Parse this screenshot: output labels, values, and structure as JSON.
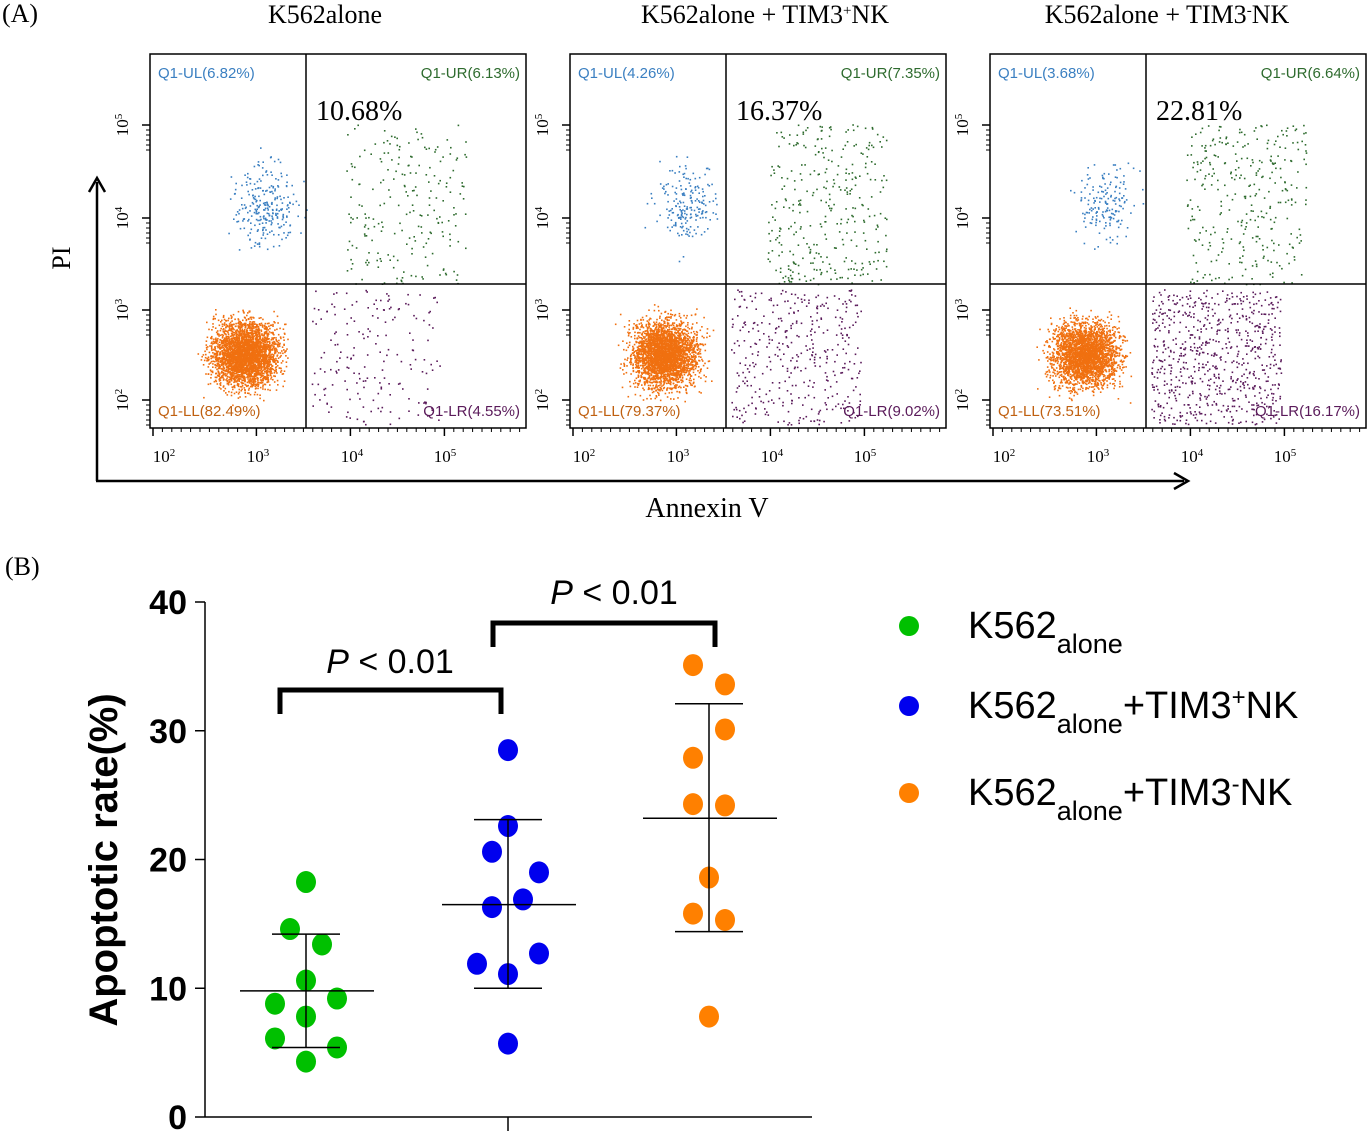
{
  "panel_a": {
    "label": "(A)",
    "y_axis_label": "PI",
    "x_axis_label": "Annexin V",
    "tick_base": "10",
    "tick_exponents": [
      "2",
      "3",
      "4",
      "5"
    ],
    "panels": [
      {
        "title_main": "K562alone",
        "title_sup": "",
        "title_end": "",
        "ul": "Q1-UL(6.82%)",
        "ur": "Q1-UR(6.13%)",
        "ll": "Q1-LL(82.49%)",
        "lr": "Q1-LR(4.55%)",
        "total": "10.68%"
      },
      {
        "title_main": "K562alone  + TIM3",
        "title_sup": "+",
        "title_end": "NK",
        "ul": "Q1-UL(4.26%)",
        "ur": "Q1-UR(7.35%)",
        "ll": "Q1-LL(79.37%)",
        "lr": "Q1-LR(9.02%)",
        "total": "16.37%"
      },
      {
        "title_main": "K562alone  + TIM3",
        "title_sup": "-",
        "title_end": "NK",
        "ul": "Q1-UL(3.68%)",
        "ur": "Q1-UR(6.64%)",
        "ll": "Q1-LL(73.51%)",
        "lr": "Q1-LR(16.17%)",
        "total": "22.81%"
      }
    ],
    "quadrant_colors": {
      "ul": "#3a7fc1",
      "ur": "#2e6b2e",
      "ll": "#f07010",
      "lr": "#5a1a5a"
    }
  },
  "chart_data": {
    "type": "scatter",
    "panel_label": "(B)",
    "ylabel": "Apoptotic rate(%)",
    "ylim": [
      0,
      40
    ],
    "yticks": [
      "0",
      "10",
      "20",
      "30",
      "40"
    ],
    "legend_position": "right",
    "series": [
      {
        "name_main": "K562",
        "name_sub": "alone",
        "name_suffix": "",
        "name_sup": "",
        "name_end": "",
        "color": "#00c000",
        "values": [
          18.25,
          14.6,
          13.4,
          10.6,
          9.2,
          8.8,
          7.8,
          6.1,
          5.4,
          4.3
        ],
        "mean": 9.8,
        "sd_upper": 14.2,
        "sd_lower": 5.4
      },
      {
        "name_main": "K562",
        "name_sub": "alone",
        "name_suffix": "+TIM3",
        "name_sup": "+",
        "name_end": "NK",
        "color": "#0000ee",
        "values": [
          28.5,
          22.6,
          20.6,
          19.0,
          16.9,
          16.3,
          12.7,
          11.9,
          11.1,
          5.7
        ],
        "mean": 16.5,
        "sd_upper": 23.1,
        "sd_lower": 10.0
      },
      {
        "name_main": "K562",
        "name_sub": "alone",
        "name_suffix": "+TIM3",
        "name_sup": "-",
        "name_end": "NK",
        "color": "#ff8000",
        "values": [
          35.1,
          33.6,
          30.1,
          27.9,
          24.3,
          24.2,
          18.6,
          15.8,
          15.3,
          7.8
        ],
        "mean": 23.2,
        "sd_upper": 32.1,
        "sd_lower": 14.4
      }
    ],
    "annotations": [
      {
        "p_italic": "P",
        "text": " < 0.01",
        "between": [
          0,
          1
        ]
      },
      {
        "p_italic": "P",
        "text": " < 0.01",
        "between": [
          1,
          2
        ]
      }
    ]
  }
}
